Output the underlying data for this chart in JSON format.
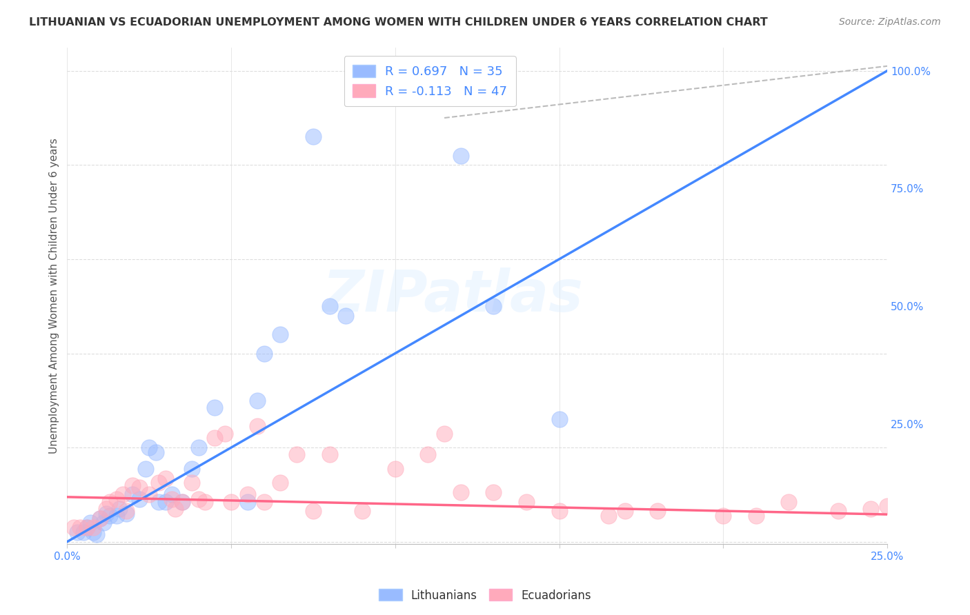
{
  "title": "LITHUANIAN VS ECUADORIAN UNEMPLOYMENT AMONG WOMEN WITH CHILDREN UNDER 6 YEARS CORRELATION CHART",
  "source": "Source: ZipAtlas.com",
  "ylabel": "Unemployment Among Women with Children Under 6 years",
  "watermark": "ZIPatlas",
  "xlim": [
    0.0,
    0.25
  ],
  "ylim": [
    -0.005,
    1.05
  ],
  "yticks": [
    0.0,
    0.25,
    0.5,
    0.75,
    1.0
  ],
  "ytick_labels": [
    "",
    "25.0%",
    "50.0%",
    "75.0%",
    "100.0%"
  ],
  "xticks": [
    0.0,
    0.05,
    0.1,
    0.15,
    0.2,
    0.25
  ],
  "xtick_labels": [
    "0.0%",
    "",
    "",
    "",
    "",
    "25.0%"
  ],
  "blue_color": "#99BBFF",
  "pink_color": "#FFAABB",
  "blue_line_color": "#4488FF",
  "pink_line_color": "#FF6688",
  "dashed_line_color": "#BBBBBB",
  "blue_scatter": [
    [
      0.003,
      0.02
    ],
    [
      0.005,
      0.02
    ],
    [
      0.006,
      0.03
    ],
    [
      0.007,
      0.04
    ],
    [
      0.008,
      0.02
    ],
    [
      0.009,
      0.015
    ],
    [
      0.01,
      0.05
    ],
    [
      0.011,
      0.04
    ],
    [
      0.012,
      0.06
    ],
    [
      0.013,
      0.055
    ],
    [
      0.015,
      0.055
    ],
    [
      0.016,
      0.07
    ],
    [
      0.018,
      0.06
    ],
    [
      0.02,
      0.1
    ],
    [
      0.022,
      0.09
    ],
    [
      0.024,
      0.155
    ],
    [
      0.025,
      0.2
    ],
    [
      0.027,
      0.19
    ],
    [
      0.028,
      0.085
    ],
    [
      0.03,
      0.085
    ],
    [
      0.032,
      0.1
    ],
    [
      0.035,
      0.085
    ],
    [
      0.038,
      0.155
    ],
    [
      0.04,
      0.2
    ],
    [
      0.045,
      0.285
    ],
    [
      0.055,
      0.085
    ],
    [
      0.058,
      0.3
    ],
    [
      0.06,
      0.4
    ],
    [
      0.065,
      0.44
    ],
    [
      0.075,
      0.86
    ],
    [
      0.08,
      0.5
    ],
    [
      0.085,
      0.48
    ],
    [
      0.12,
      0.82
    ],
    [
      0.13,
      0.5
    ],
    [
      0.15,
      0.26
    ]
  ],
  "pink_scatter": [
    [
      0.002,
      0.03
    ],
    [
      0.004,
      0.03
    ],
    [
      0.006,
      0.03
    ],
    [
      0.008,
      0.03
    ],
    [
      0.01,
      0.05
    ],
    [
      0.012,
      0.07
    ],
    [
      0.013,
      0.085
    ],
    [
      0.015,
      0.09
    ],
    [
      0.017,
      0.1
    ],
    [
      0.018,
      0.065
    ],
    [
      0.02,
      0.12
    ],
    [
      0.022,
      0.115
    ],
    [
      0.025,
      0.1
    ],
    [
      0.028,
      0.125
    ],
    [
      0.03,
      0.135
    ],
    [
      0.032,
      0.09
    ],
    [
      0.033,
      0.07
    ],
    [
      0.035,
      0.085
    ],
    [
      0.038,
      0.125
    ],
    [
      0.04,
      0.09
    ],
    [
      0.042,
      0.085
    ],
    [
      0.045,
      0.22
    ],
    [
      0.048,
      0.23
    ],
    [
      0.05,
      0.085
    ],
    [
      0.055,
      0.1
    ],
    [
      0.058,
      0.245
    ],
    [
      0.06,
      0.085
    ],
    [
      0.065,
      0.125
    ],
    [
      0.07,
      0.185
    ],
    [
      0.075,
      0.065
    ],
    [
      0.08,
      0.185
    ],
    [
      0.09,
      0.065
    ],
    [
      0.1,
      0.155
    ],
    [
      0.11,
      0.185
    ],
    [
      0.115,
      0.23
    ],
    [
      0.12,
      0.105
    ],
    [
      0.13,
      0.105
    ],
    [
      0.14,
      0.085
    ],
    [
      0.15,
      0.065
    ],
    [
      0.165,
      0.055
    ],
    [
      0.17,
      0.065
    ],
    [
      0.18,
      0.065
    ],
    [
      0.2,
      0.055
    ],
    [
      0.21,
      0.055
    ],
    [
      0.22,
      0.085
    ],
    [
      0.235,
      0.065
    ],
    [
      0.245,
      0.07
    ],
    [
      0.25,
      0.075
    ]
  ],
  "blue_line_x": [
    0.0,
    0.25
  ],
  "blue_line_y": [
    0.0,
    1.0
  ],
  "pink_line_x": [
    0.0,
    0.25
  ],
  "pink_line_y": [
    0.095,
    0.058
  ],
  "dashed_line_x": [
    0.115,
    0.25
  ],
  "dashed_line_y": [
    0.9,
    1.01
  ]
}
